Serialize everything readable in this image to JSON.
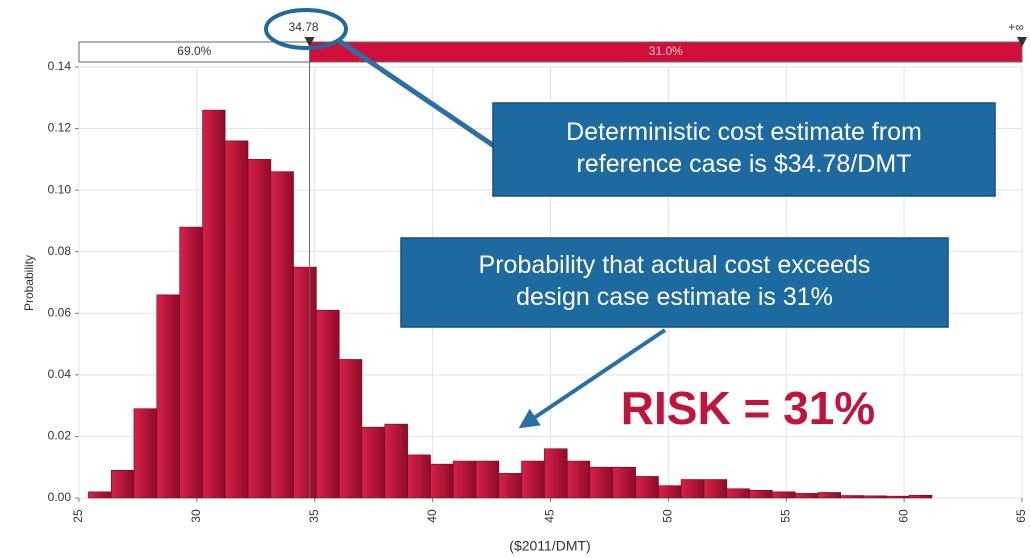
{
  "chart_data": {
    "type": "histogram",
    "y_label": "Probability",
    "x_label": "($2011/DMT)",
    "bins": [
      25.4,
      26.37,
      27.33,
      28.3,
      29.27,
      30.24,
      31.2,
      32.17,
      33.14,
      34.1,
      35.07,
      36.04,
      37.0,
      37.97,
      38.94,
      39.91,
      40.87,
      41.84,
      42.81,
      43.77,
      44.74,
      45.71,
      46.67,
      47.64,
      48.61,
      49.58,
      50.54,
      51.51,
      52.48,
      53.44,
      54.41,
      55.38,
      56.35,
      57.31,
      58.28,
      59.25,
      60.21,
      61.18
    ],
    "values": [
      0.002,
      0.009,
      0.029,
      0.066,
      0.088,
      0.126,
      0.116,
      0.11,
      0.106,
      0.075,
      0.061,
      0.045,
      0.023,
      0.024,
      0.014,
      0.011,
      0.012,
      0.012,
      0.008,
      0.012,
      0.016,
      0.012,
      0.01,
      0.01,
      0.007,
      0.004,
      0.006,
      0.006,
      0.003,
      0.0025,
      0.002,
      0.0015,
      0.0018,
      0.0008,
      0.0007,
      0.0006,
      0.0009
    ],
    "color": "#c01438",
    "xlim": [
      25,
      65
    ],
    "xticks": [
      25,
      30,
      35,
      40,
      45,
      50,
      55,
      60,
      65
    ],
    "ylim": [
      0,
      0.14
    ],
    "yticks": [
      {
        "value": 0,
        "label": "0.00"
      },
      0.02,
      0.04,
      0.06,
      0.08,
      {
        "value": 0.1,
        "label": "0.10"
      },
      0.12,
      0.14
    ],
    "grid": true,
    "threshold": 34.78,
    "upper_label": "+∞",
    "region_values": [
      69.0,
      31.0
    ],
    "region_value_labels": [
      "69.0%",
      "31.0%"
    ],
    "annotations": [
      {
        "lines": [
          "Deterministic cost estimate from",
          "reference case is $34.78/DMT"
        ]
      },
      {
        "lines": [
          "Probability that actual cost exceeds",
          "design case estimate is 31%"
        ]
      },
      {
        "text": "RISK = 31%"
      }
    ]
  }
}
